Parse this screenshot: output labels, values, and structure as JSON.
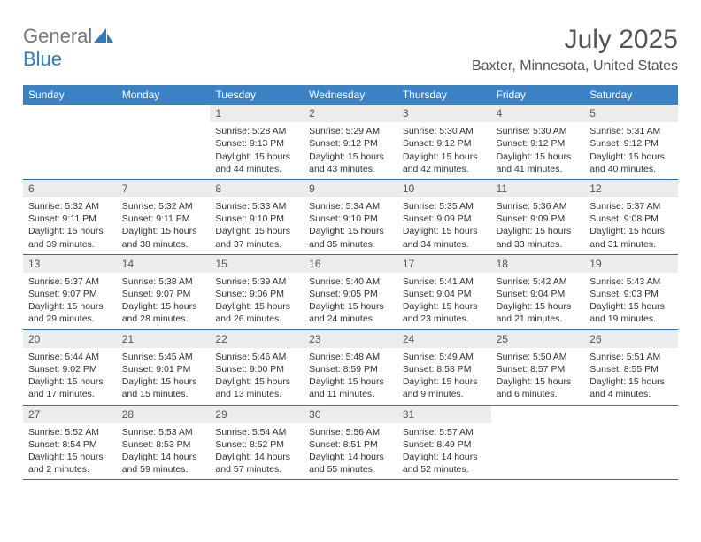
{
  "brand": {
    "general": "General",
    "blue": "Blue"
  },
  "title": "July 2025",
  "location": "Baxter, Minnesota, United States",
  "colors": {
    "header_bg": "#3b82c4",
    "header_text": "#ffffff",
    "daynum_bg": "#ececec",
    "rule": "#2f6fa8",
    "text": "#333333",
    "brand_gray": "#777777",
    "brand_blue": "#2f7bbf"
  },
  "day_names": [
    "Sunday",
    "Monday",
    "Tuesday",
    "Wednesday",
    "Thursday",
    "Friday",
    "Saturday"
  ],
  "weeks": [
    [
      {
        "n": "",
        "sunrise": "",
        "sunset": "",
        "daylight": ""
      },
      {
        "n": "",
        "sunrise": "",
        "sunset": "",
        "daylight": ""
      },
      {
        "n": "1",
        "sunrise": "Sunrise: 5:28 AM",
        "sunset": "Sunset: 9:13 PM",
        "daylight": "Daylight: 15 hours and 44 minutes."
      },
      {
        "n": "2",
        "sunrise": "Sunrise: 5:29 AM",
        "sunset": "Sunset: 9:12 PM",
        "daylight": "Daylight: 15 hours and 43 minutes."
      },
      {
        "n": "3",
        "sunrise": "Sunrise: 5:30 AM",
        "sunset": "Sunset: 9:12 PM",
        "daylight": "Daylight: 15 hours and 42 minutes."
      },
      {
        "n": "4",
        "sunrise": "Sunrise: 5:30 AM",
        "sunset": "Sunset: 9:12 PM",
        "daylight": "Daylight: 15 hours and 41 minutes."
      },
      {
        "n": "5",
        "sunrise": "Sunrise: 5:31 AM",
        "sunset": "Sunset: 9:12 PM",
        "daylight": "Daylight: 15 hours and 40 minutes."
      }
    ],
    [
      {
        "n": "6",
        "sunrise": "Sunrise: 5:32 AM",
        "sunset": "Sunset: 9:11 PM",
        "daylight": "Daylight: 15 hours and 39 minutes."
      },
      {
        "n": "7",
        "sunrise": "Sunrise: 5:32 AM",
        "sunset": "Sunset: 9:11 PM",
        "daylight": "Daylight: 15 hours and 38 minutes."
      },
      {
        "n": "8",
        "sunrise": "Sunrise: 5:33 AM",
        "sunset": "Sunset: 9:10 PM",
        "daylight": "Daylight: 15 hours and 37 minutes."
      },
      {
        "n": "9",
        "sunrise": "Sunrise: 5:34 AM",
        "sunset": "Sunset: 9:10 PM",
        "daylight": "Daylight: 15 hours and 35 minutes."
      },
      {
        "n": "10",
        "sunrise": "Sunrise: 5:35 AM",
        "sunset": "Sunset: 9:09 PM",
        "daylight": "Daylight: 15 hours and 34 minutes."
      },
      {
        "n": "11",
        "sunrise": "Sunrise: 5:36 AM",
        "sunset": "Sunset: 9:09 PM",
        "daylight": "Daylight: 15 hours and 33 minutes."
      },
      {
        "n": "12",
        "sunrise": "Sunrise: 5:37 AM",
        "sunset": "Sunset: 9:08 PM",
        "daylight": "Daylight: 15 hours and 31 minutes."
      }
    ],
    [
      {
        "n": "13",
        "sunrise": "Sunrise: 5:37 AM",
        "sunset": "Sunset: 9:07 PM",
        "daylight": "Daylight: 15 hours and 29 minutes."
      },
      {
        "n": "14",
        "sunrise": "Sunrise: 5:38 AM",
        "sunset": "Sunset: 9:07 PM",
        "daylight": "Daylight: 15 hours and 28 minutes."
      },
      {
        "n": "15",
        "sunrise": "Sunrise: 5:39 AM",
        "sunset": "Sunset: 9:06 PM",
        "daylight": "Daylight: 15 hours and 26 minutes."
      },
      {
        "n": "16",
        "sunrise": "Sunrise: 5:40 AM",
        "sunset": "Sunset: 9:05 PM",
        "daylight": "Daylight: 15 hours and 24 minutes."
      },
      {
        "n": "17",
        "sunrise": "Sunrise: 5:41 AM",
        "sunset": "Sunset: 9:04 PM",
        "daylight": "Daylight: 15 hours and 23 minutes."
      },
      {
        "n": "18",
        "sunrise": "Sunrise: 5:42 AM",
        "sunset": "Sunset: 9:04 PM",
        "daylight": "Daylight: 15 hours and 21 minutes."
      },
      {
        "n": "19",
        "sunrise": "Sunrise: 5:43 AM",
        "sunset": "Sunset: 9:03 PM",
        "daylight": "Daylight: 15 hours and 19 minutes."
      }
    ],
    [
      {
        "n": "20",
        "sunrise": "Sunrise: 5:44 AM",
        "sunset": "Sunset: 9:02 PM",
        "daylight": "Daylight: 15 hours and 17 minutes."
      },
      {
        "n": "21",
        "sunrise": "Sunrise: 5:45 AM",
        "sunset": "Sunset: 9:01 PM",
        "daylight": "Daylight: 15 hours and 15 minutes."
      },
      {
        "n": "22",
        "sunrise": "Sunrise: 5:46 AM",
        "sunset": "Sunset: 9:00 PM",
        "daylight": "Daylight: 15 hours and 13 minutes."
      },
      {
        "n": "23",
        "sunrise": "Sunrise: 5:48 AM",
        "sunset": "Sunset: 8:59 PM",
        "daylight": "Daylight: 15 hours and 11 minutes."
      },
      {
        "n": "24",
        "sunrise": "Sunrise: 5:49 AM",
        "sunset": "Sunset: 8:58 PM",
        "daylight": "Daylight: 15 hours and 9 minutes."
      },
      {
        "n": "25",
        "sunrise": "Sunrise: 5:50 AM",
        "sunset": "Sunset: 8:57 PM",
        "daylight": "Daylight: 15 hours and 6 minutes."
      },
      {
        "n": "26",
        "sunrise": "Sunrise: 5:51 AM",
        "sunset": "Sunset: 8:55 PM",
        "daylight": "Daylight: 15 hours and 4 minutes."
      }
    ],
    [
      {
        "n": "27",
        "sunrise": "Sunrise: 5:52 AM",
        "sunset": "Sunset: 8:54 PM",
        "daylight": "Daylight: 15 hours and 2 minutes."
      },
      {
        "n": "28",
        "sunrise": "Sunrise: 5:53 AM",
        "sunset": "Sunset: 8:53 PM",
        "daylight": "Daylight: 14 hours and 59 minutes."
      },
      {
        "n": "29",
        "sunrise": "Sunrise: 5:54 AM",
        "sunset": "Sunset: 8:52 PM",
        "daylight": "Daylight: 14 hours and 57 minutes."
      },
      {
        "n": "30",
        "sunrise": "Sunrise: 5:56 AM",
        "sunset": "Sunset: 8:51 PM",
        "daylight": "Daylight: 14 hours and 55 minutes."
      },
      {
        "n": "31",
        "sunrise": "Sunrise: 5:57 AM",
        "sunset": "Sunset: 8:49 PM",
        "daylight": "Daylight: 14 hours and 52 minutes."
      },
      {
        "n": "",
        "sunrise": "",
        "sunset": "",
        "daylight": ""
      },
      {
        "n": "",
        "sunrise": "",
        "sunset": "",
        "daylight": ""
      }
    ]
  ]
}
